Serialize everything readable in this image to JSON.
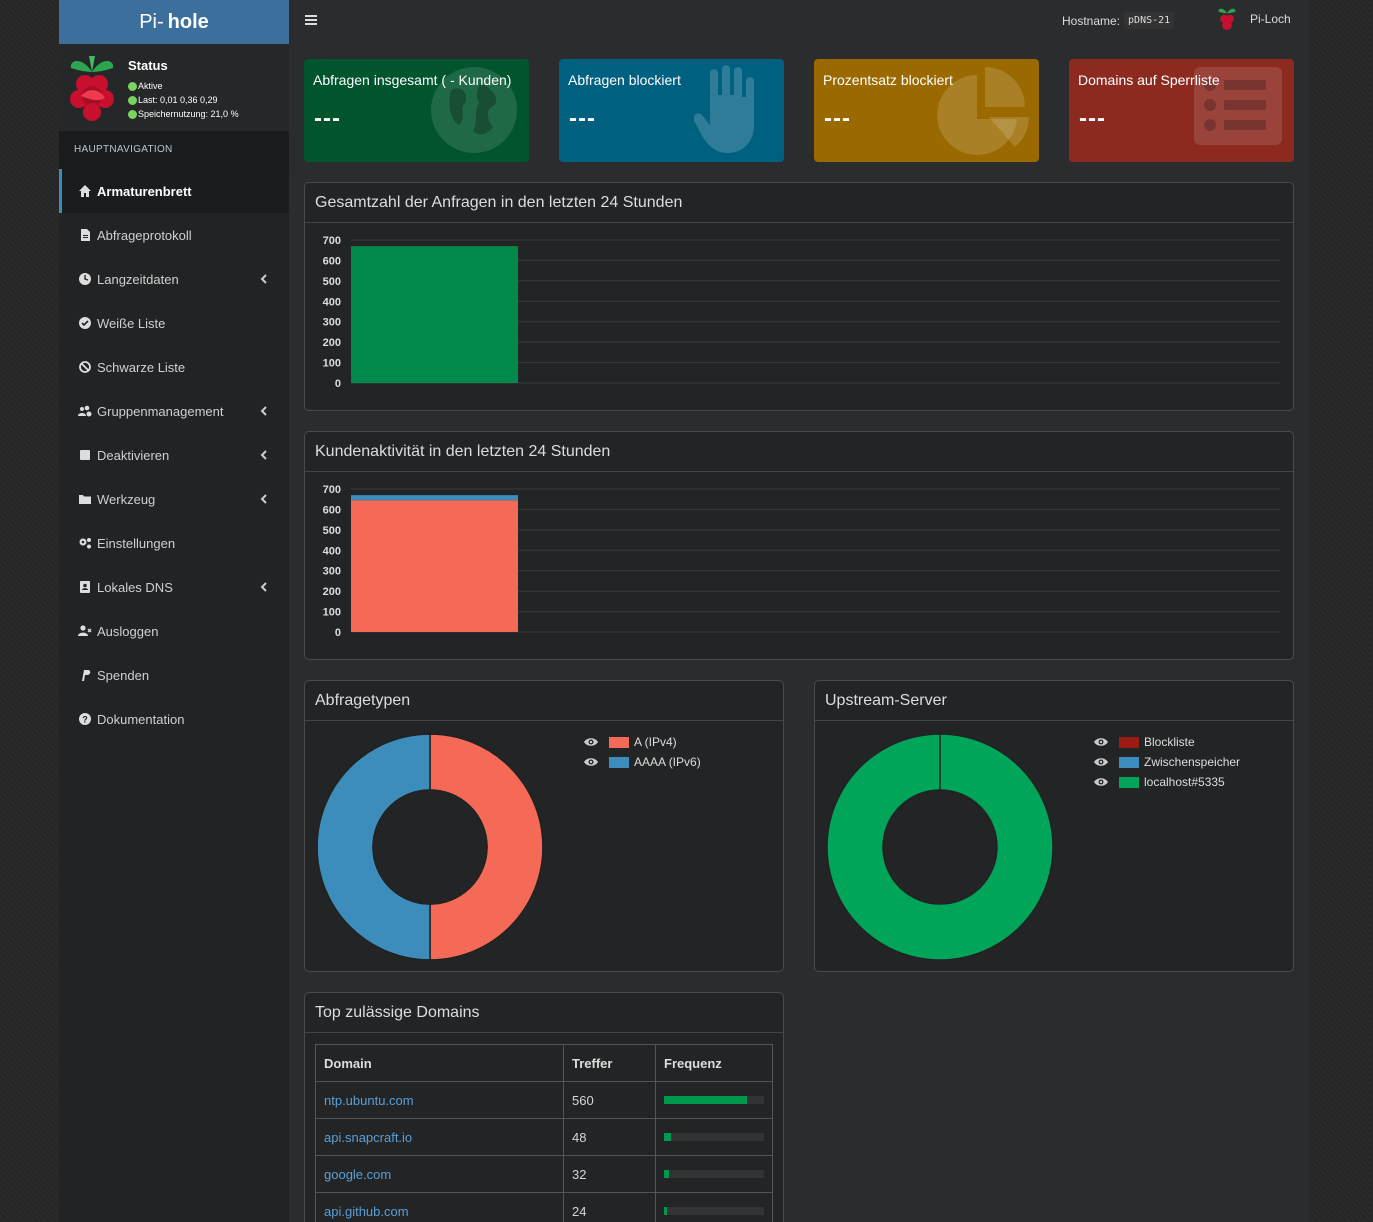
{
  "app": {
    "logo_prefix": "Pi-",
    "logo_main": "hole",
    "hostname_label": "Hostname:",
    "hostname_value": "pDNS-21",
    "user_label": "Pi-Loch"
  },
  "status": {
    "title": "Status",
    "active": "Aktive",
    "load": "Last: 0,01 0,36 0,29",
    "memory": "Speichernutzung: 21,0 %"
  },
  "nav": {
    "header": "HAUPTNAVIGATION",
    "items": [
      {
        "label": "Armaturenbrett",
        "icon": "home-icon",
        "active": true,
        "submenu": false
      },
      {
        "label": "Abfrageprotokoll",
        "icon": "file-icon",
        "active": false,
        "submenu": false
      },
      {
        "label": "Langzeitdaten",
        "icon": "clock-icon",
        "active": false,
        "submenu": true
      },
      {
        "label": "Weiße Liste",
        "icon": "check-circle-icon",
        "active": false,
        "submenu": false
      },
      {
        "label": "Schwarze Liste",
        "icon": "ban-icon",
        "active": false,
        "submenu": false
      },
      {
        "label": "Gruppenmanagement",
        "icon": "users-cog-icon",
        "active": false,
        "submenu": true
      },
      {
        "label": "Deaktivieren",
        "icon": "stop-icon",
        "active": false,
        "submenu": true
      },
      {
        "label": "Werkzeug",
        "icon": "folder-icon",
        "active": false,
        "submenu": true
      },
      {
        "label": "Einstellungen",
        "icon": "cogs-icon",
        "active": false,
        "submenu": false
      },
      {
        "label": "Lokales DNS",
        "icon": "address-book-icon",
        "active": false,
        "submenu": true
      },
      {
        "label": "Ausloggen",
        "icon": "user-times-icon",
        "active": false,
        "submenu": false
      },
      {
        "label": "Spenden",
        "icon": "paypal-icon",
        "active": false,
        "submenu": false
      },
      {
        "label": "Dokumentation",
        "icon": "question-circle-icon",
        "active": false,
        "submenu": false
      }
    ]
  },
  "cards": [
    {
      "label": "Abfragen insgesamt ( - Kunden)",
      "value": "---",
      "color": "#00552d",
      "icon": "globe-icon"
    },
    {
      "label": "Abfragen blockiert",
      "value": "---",
      "color": "#006080",
      "icon": "hand-icon"
    },
    {
      "label": "Prozentsatz blockiert",
      "value": "---",
      "color": "#9a6a00",
      "icon": "pie-chart-icon"
    },
    {
      "label": "Domains auf Sperrliste",
      "value": "---",
      "color": "#8c2a20",
      "icon": "list-icon"
    }
  ],
  "panels": {
    "queries_title": "Gesamtzahl der Anfragen in den letzten 24 Stunden",
    "clients_title": "Kundenaktivität in den letzten 24 Stunden",
    "query_types_title": "Abfragetypen",
    "upstream_title": "Upstream-Server",
    "top_domains_title": "Top zulässige Domains"
  },
  "chart_data": [
    {
      "type": "bar",
      "title": "Gesamtzahl der Anfragen in den letzten 24 Stunden",
      "ylim": [
        0,
        700
      ],
      "yticks": [
        "700",
        "600",
        "500",
        "400",
        "300",
        "200",
        "100",
        "0"
      ],
      "series": [
        {
          "values": [
            670
          ],
          "color": "#00894a"
        }
      ]
    },
    {
      "type": "bar",
      "title": "Kundenaktivität in den letzten 24 Stunden",
      "ylim": [
        0,
        700
      ],
      "yticks": [
        "700",
        "600",
        "500",
        "400",
        "300",
        "200",
        "100",
        "0"
      ],
      "stacked": true,
      "series": [
        {
          "values": [
            645
          ],
          "color": "#f56a57"
        },
        {
          "values": [
            25
          ],
          "color": "#3c8dbc"
        }
      ]
    },
    {
      "type": "pie",
      "title": "Abfragetypen",
      "labels": [
        "A (IPv4)",
        "AAAA (IPv6)"
      ],
      "values": [
        50,
        50
      ],
      "colors": [
        "#f56a57",
        "#3c8dbc"
      ]
    },
    {
      "type": "pie",
      "title": "Upstream-Server",
      "labels": [
        "Blockliste",
        "Zwischenspeicher",
        "localhost#5335"
      ],
      "values": [
        0,
        0,
        100
      ],
      "colors": [
        "#9a1b12",
        "#3c8dbc",
        "#00a55a"
      ]
    }
  ],
  "top_domains": {
    "headers": [
      "Domain",
      "Treffer",
      "Frequenz"
    ],
    "rows": [
      {
        "domain": "ntp.ubuntu.com",
        "hits": "560",
        "freq": 0.83
      },
      {
        "domain": "api.snapcraft.io",
        "hits": "48",
        "freq": 0.07
      },
      {
        "domain": "google.com",
        "hits": "32",
        "freq": 0.05
      },
      {
        "domain": "api.github.com",
        "hits": "24",
        "freq": 0.03
      }
    ]
  }
}
